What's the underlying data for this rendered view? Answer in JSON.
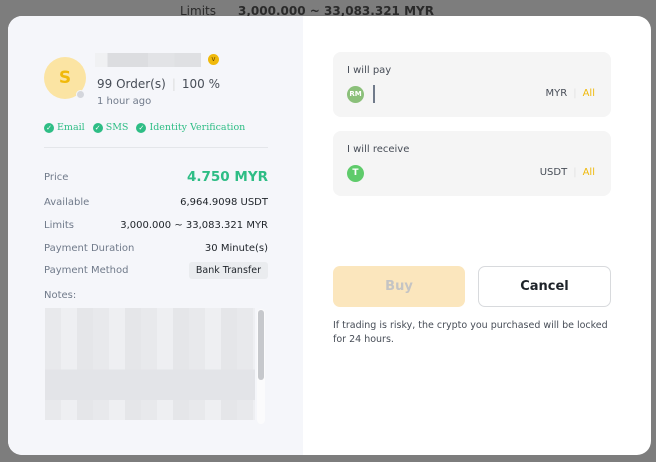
{
  "background": {
    "limits_label": "Limits",
    "limits_value": "3,000.000 ~ 33,083.321 MYR"
  },
  "merchant": {
    "avatar_letter": "S",
    "orders": "99 Order(s)",
    "completion": "100 %",
    "last_seen": "1 hour ago",
    "verifications": [
      "Email",
      "SMS",
      "Identity Verification"
    ]
  },
  "details": [
    {
      "label": "Price",
      "value": "4.750 MYR"
    },
    {
      "label": "Available",
      "value": "6,964.9098 USDT"
    },
    {
      "label": "Limits",
      "value": "3,000.000 ~ 33,083.321 MYR"
    },
    {
      "label": "Payment Duration",
      "value": "30 Minute(s)"
    },
    {
      "label": "Payment Method",
      "value": "Bank Transfer"
    }
  ],
  "notes_label": "Notes:",
  "pay": {
    "label": "I will pay",
    "coin": "RM",
    "currency": "MYR",
    "all": "All",
    "value": ""
  },
  "receive": {
    "label": "I will receive",
    "coin": "T",
    "currency": "USDT",
    "all": "All",
    "value": ""
  },
  "buttons": {
    "buy": "Buy",
    "cancel": "Cancel"
  },
  "warning": "If trading is risky, the crypto you purchased will be locked for 24 hours.",
  "colors": {
    "accent": "#f0b90b",
    "price_green": "#2ebd85"
  }
}
